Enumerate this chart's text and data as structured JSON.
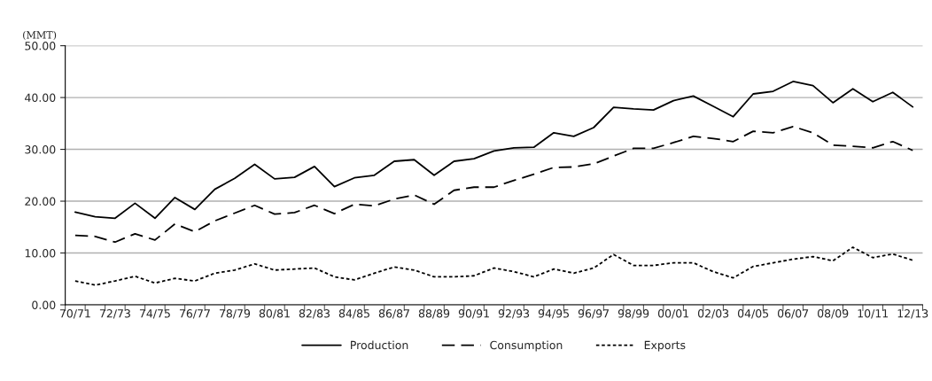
{
  "chart_data": {
    "type": "line",
    "ylabel": "(MMT)",
    "categories": [
      "70/71",
      null,
      "72/73",
      null,
      "74/75",
      null,
      "76/77",
      null,
      "78/79",
      null,
      "80/81",
      null,
      "82/83",
      null,
      "84/85",
      null,
      "86/87",
      null,
      "88/89",
      null,
      "90/91",
      null,
      "92/93",
      null,
      "94/95",
      null,
      "96/97",
      null,
      "98/99",
      null,
      "00/01",
      null,
      "02/03",
      null,
      "04/05",
      null,
      "06/07",
      null,
      "08/09",
      null,
      "10/11",
      null,
      "12/13"
    ],
    "series": [
      {
        "name": "Production",
        "color": "#000000",
        "line_style": "solid",
        "values": [
          17.9,
          17.0,
          16.7,
          19.6,
          16.7,
          20.7,
          18.4,
          22.3,
          24.4,
          27.1,
          24.3,
          24.6,
          26.7,
          22.8,
          24.5,
          25.0,
          27.7,
          28.0,
          25.0,
          27.7,
          28.2,
          29.7,
          30.3,
          30.4,
          33.2,
          32.5,
          34.2,
          38.1,
          37.8,
          37.6,
          39.4,
          40.3,
          38.3,
          36.3,
          40.7,
          41.2,
          43.1,
          42.3,
          39.0,
          41.7,
          39.2,
          41.0,
          38.2
        ]
      },
      {
        "name": "Consumption",
        "color": "#000000",
        "line_style": "dashed",
        "values": [
          13.4,
          13.2,
          12.1,
          13.7,
          12.5,
          15.6,
          14.1,
          16.2,
          17.7,
          19.2,
          17.5,
          17.8,
          19.2,
          17.6,
          19.4,
          19.1,
          20.4,
          21.2,
          19.4,
          22.1,
          22.7,
          22.7,
          24.0,
          25.2,
          26.5,
          26.6,
          27.2,
          28.7,
          30.2,
          30.2,
          31.3,
          32.5,
          32.1,
          31.5,
          33.5,
          33.2,
          34.4,
          33.2,
          30.8,
          30.6,
          30.3,
          31.5,
          29.8
        ]
      },
      {
        "name": "Exports",
        "color": "#000000",
        "line_style": "dotted",
        "values": [
          4.6,
          3.8,
          4.6,
          5.5,
          4.2,
          5.1,
          4.6,
          6.1,
          6.7,
          7.9,
          6.7,
          6.9,
          7.1,
          5.4,
          4.8,
          6.1,
          7.3,
          6.7,
          5.4,
          5.4,
          5.6,
          7.1,
          6.4,
          5.4,
          6.9,
          6.1,
          7.1,
          9.7,
          7.6,
          7.6,
          8.1,
          8.1,
          6.4,
          5.2,
          7.4,
          8.1,
          8.8,
          9.3,
          8.5,
          11.1,
          9.1,
          9.8,
          8.6
        ]
      }
    ],
    "ylim": [
      0,
      50
    ],
    "yticks": [
      {
        "value": 0,
        "label": "0.00"
      },
      {
        "value": 10,
        "label": "10.00"
      },
      {
        "value": 20,
        "label": "20.00"
      },
      {
        "value": 30,
        "label": "30.00"
      },
      {
        "value": 40,
        "label": "40.00"
      },
      {
        "value": 50,
        "label": "50.00"
      }
    ],
    "grid": "y",
    "legend": "bottom",
    "marker": "none"
  }
}
